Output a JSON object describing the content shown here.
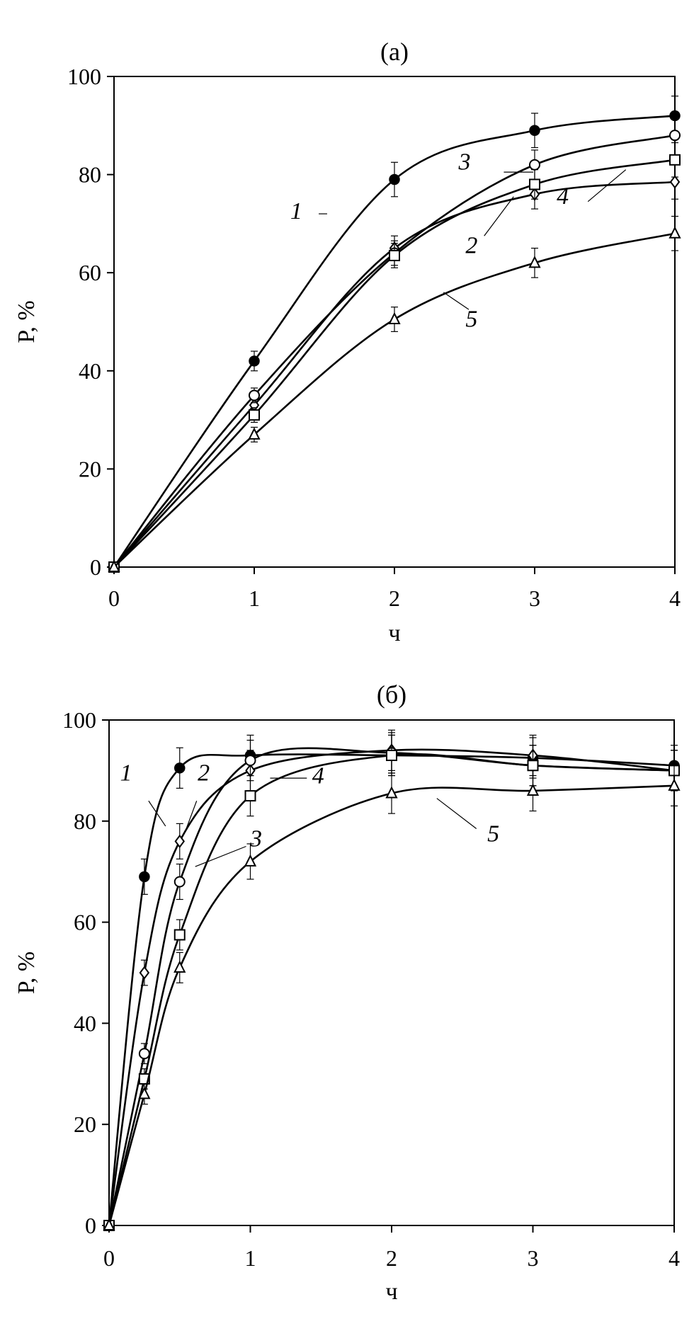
{
  "chart_data": [
    {
      "type": "line",
      "title": "(а)",
      "xlabel": "ч",
      "ylabel": "P, %",
      "xlim": [
        0,
        4
      ],
      "ylim": [
        0,
        100
      ],
      "xticks": [
        "0",
        "1",
        "2",
        "3",
        "4"
      ],
      "yticks": [
        "0",
        "20",
        "40",
        "60",
        "80",
        "100"
      ],
      "grid": false,
      "legend": "none (curve numbers placed next to lines)",
      "series": [
        {
          "name": "1",
          "marker": "filled-circle",
          "x": [
            0,
            1,
            2,
            3,
            4
          ],
          "y": [
            0,
            42,
            79,
            89,
            92
          ],
          "err": [
            0,
            2,
            3.5,
            3.5,
            4
          ]
        },
        {
          "name": "2",
          "marker": "diamond",
          "x": [
            0,
            1,
            2,
            3,
            4
          ],
          "y": [
            0,
            33,
            65,
            76,
            78.5
          ],
          "err": [
            0,
            1.5,
            2.5,
            3,
            3.5
          ]
        },
        {
          "name": "3",
          "marker": "circle",
          "x": [
            0,
            1,
            2,
            3,
            4
          ],
          "y": [
            0,
            35,
            64,
            82,
            88
          ],
          "err": [
            0,
            1.5,
            2.5,
            3,
            4
          ]
        },
        {
          "name": "4",
          "marker": "square",
          "x": [
            0,
            1,
            2,
            3,
            4
          ],
          "y": [
            0,
            31,
            63.5,
            78,
            83
          ],
          "err": [
            0,
            1.5,
            2.5,
            3,
            3.5
          ]
        },
        {
          "name": "5",
          "marker": "triangle",
          "x": [
            0,
            1,
            2,
            3,
            4
          ],
          "y": [
            0,
            27,
            50.5,
            62,
            68
          ],
          "err": [
            0,
            1.5,
            2.5,
            3,
            3.5
          ]
        }
      ],
      "curve_labels": [
        {
          "text": "1",
          "series": "1",
          "x": 1.3,
          "y": 71,
          "lx": 1.52,
          "ly": 72,
          "ex": 1.46,
          "ey": 72
        },
        {
          "text": "3",
          "series": "3",
          "x": 2.5,
          "y": 81,
          "lx": 2.78,
          "ly": 80.5,
          "ex": 2.99,
          "ey": 80.5
        },
        {
          "text": "2",
          "series": "2",
          "x": 2.55,
          "y": 64,
          "lx": 2.64,
          "ly": 67.5,
          "ex": 2.85,
          "ey": 75.5
        },
        {
          "text": "4",
          "series": "4",
          "x": 3.2,
          "y": 74,
          "lx": 3.38,
          "ly": 74.5,
          "ex": 3.65,
          "ey": 81
        },
        {
          "text": "5",
          "series": "5",
          "x": 2.55,
          "y": 49,
          "lx": 2.53,
          "ly": 52.5,
          "ex": 2.35,
          "ey": 56
        }
      ]
    },
    {
      "type": "line",
      "title": "(б)",
      "xlabel": "ч",
      "ylabel": "P, %",
      "xlim": [
        0,
        4
      ],
      "ylim": [
        0,
        100
      ],
      "xticks": [
        "0",
        "1",
        "2",
        "3",
        "4"
      ],
      "yticks": [
        "0",
        "20",
        "40",
        "60",
        "80",
        "100"
      ],
      "grid": false,
      "legend": "none (curve numbers placed next to lines)",
      "series": [
        {
          "name": "1",
          "marker": "filled-circle",
          "x": [
            0,
            0.25,
            0.5,
            1,
            2,
            3,
            4
          ],
          "y": [
            0,
            69,
            90.5,
            93,
            93,
            92.5,
            91
          ],
          "err": [
            0,
            3.5,
            4,
            4,
            4,
            4,
            4
          ]
        },
        {
          "name": "2",
          "marker": "diamond",
          "x": [
            0,
            0.25,
            0.5,
            1,
            2,
            3,
            4
          ],
          "y": [
            0,
            50,
            76,
            90,
            94,
            93,
            90
          ],
          "err": [
            0,
            2.5,
            3.5,
            4,
            4,
            4,
            4
          ]
        },
        {
          "name": "3",
          "marker": "circle",
          "x": [
            0,
            0.25,
            0.5,
            1,
            2,
            3,
            4
          ],
          "y": [
            0,
            34,
            68,
            92,
            93.5,
            91,
            90
          ],
          "err": [
            0,
            2,
            3.5,
            4,
            4,
            4,
            4
          ]
        },
        {
          "name": "4",
          "marker": "square",
          "x": [
            0,
            0.25,
            0.5,
            1,
            2,
            3,
            4
          ],
          "y": [
            0,
            29,
            57.5,
            85,
            93,
            91,
            90
          ],
          "err": [
            0,
            2,
            3,
            4,
            4,
            4,
            4
          ]
        },
        {
          "name": "5",
          "marker": "triangle",
          "x": [
            0,
            0.25,
            0.5,
            1,
            2,
            3,
            4
          ],
          "y": [
            0,
            26,
            51,
            72,
            85.5,
            86,
            87
          ],
          "err": [
            0,
            2,
            3,
            3.5,
            4,
            4,
            4
          ]
        }
      ],
      "curve_labels": [
        {
          "text": "1",
          "series": "1",
          "x": 0.12,
          "y": 88,
          "lx": 0.28,
          "ly": 84,
          "ex": 0.4,
          "ey": 79
        },
        {
          "text": "2",
          "series": "2",
          "x": 0.67,
          "y": 88,
          "lx": 0.62,
          "ly": 84,
          "ex": 0.54,
          "ey": 78
        },
        {
          "text": "3",
          "series": "3",
          "x": 1.04,
          "y": 75,
          "lx": 0.97,
          "ly": 75,
          "ex": 0.61,
          "ey": 71
        },
        {
          "text": "4",
          "series": "4",
          "x": 1.48,
          "y": 87.5,
          "lx": 1.4,
          "ly": 88.5,
          "ex": 1.14,
          "ey": 88.5
        },
        {
          "text": "5",
          "series": "5",
          "x": 2.72,
          "y": 76,
          "lx": 2.6,
          "ly": 78.5,
          "ex": 2.32,
          "ey": 84.5
        }
      ]
    }
  ]
}
